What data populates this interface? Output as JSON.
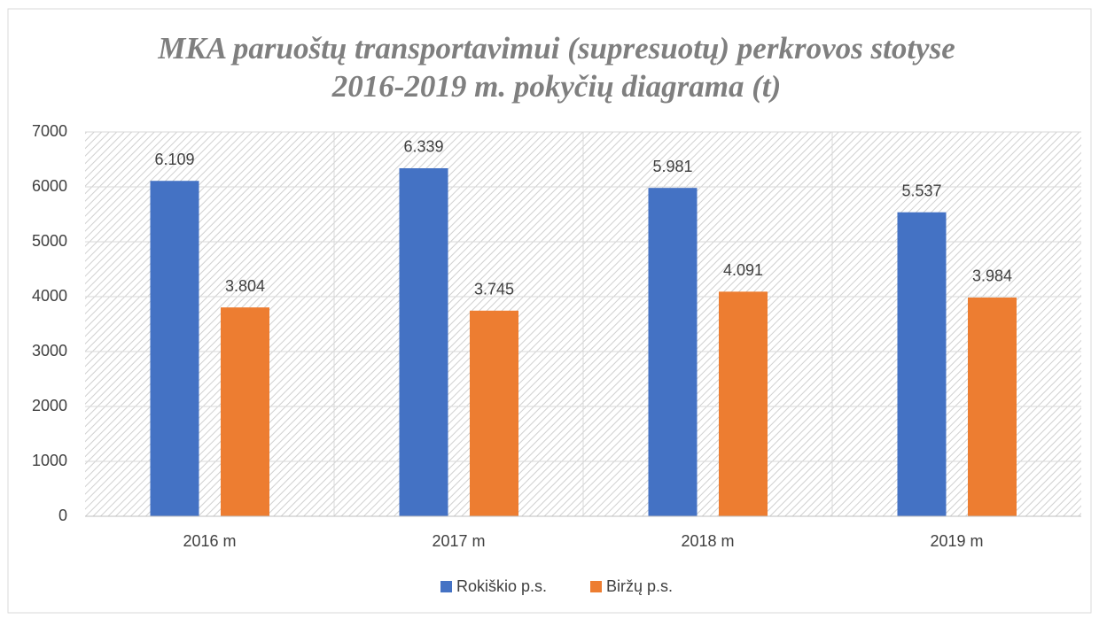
{
  "chart_data": {
    "type": "bar",
    "title": [
      "MKA paruoštų transportavimui (supresuotų) perkrovos stotyse",
      "2016-2019 m. pokyčių diagrama (t)"
    ],
    "categories": [
      "2016 m",
      "2017 m",
      "2018 m",
      "2019 m"
    ],
    "series": [
      {
        "name": "Rokiškio p.s.",
        "color": "#4472c4",
        "values": [
          6109,
          6339,
          5981,
          5537
        ],
        "value_labels": [
          "6.109",
          "6.339",
          "5.981",
          "5.537"
        ]
      },
      {
        "name": "Biržų p.s.",
        "color": "#ed7d31",
        "values": [
          3804,
          3745,
          4091,
          3984
        ],
        "value_labels": [
          "3.804",
          "3.745",
          "4.091",
          "3.984"
        ]
      }
    ],
    "ylim": [
      0,
      7000
    ],
    "yticks": [
      0,
      1000,
      2000,
      3000,
      4000,
      5000,
      6000,
      7000
    ],
    "grid": true,
    "legend": "bottom"
  }
}
